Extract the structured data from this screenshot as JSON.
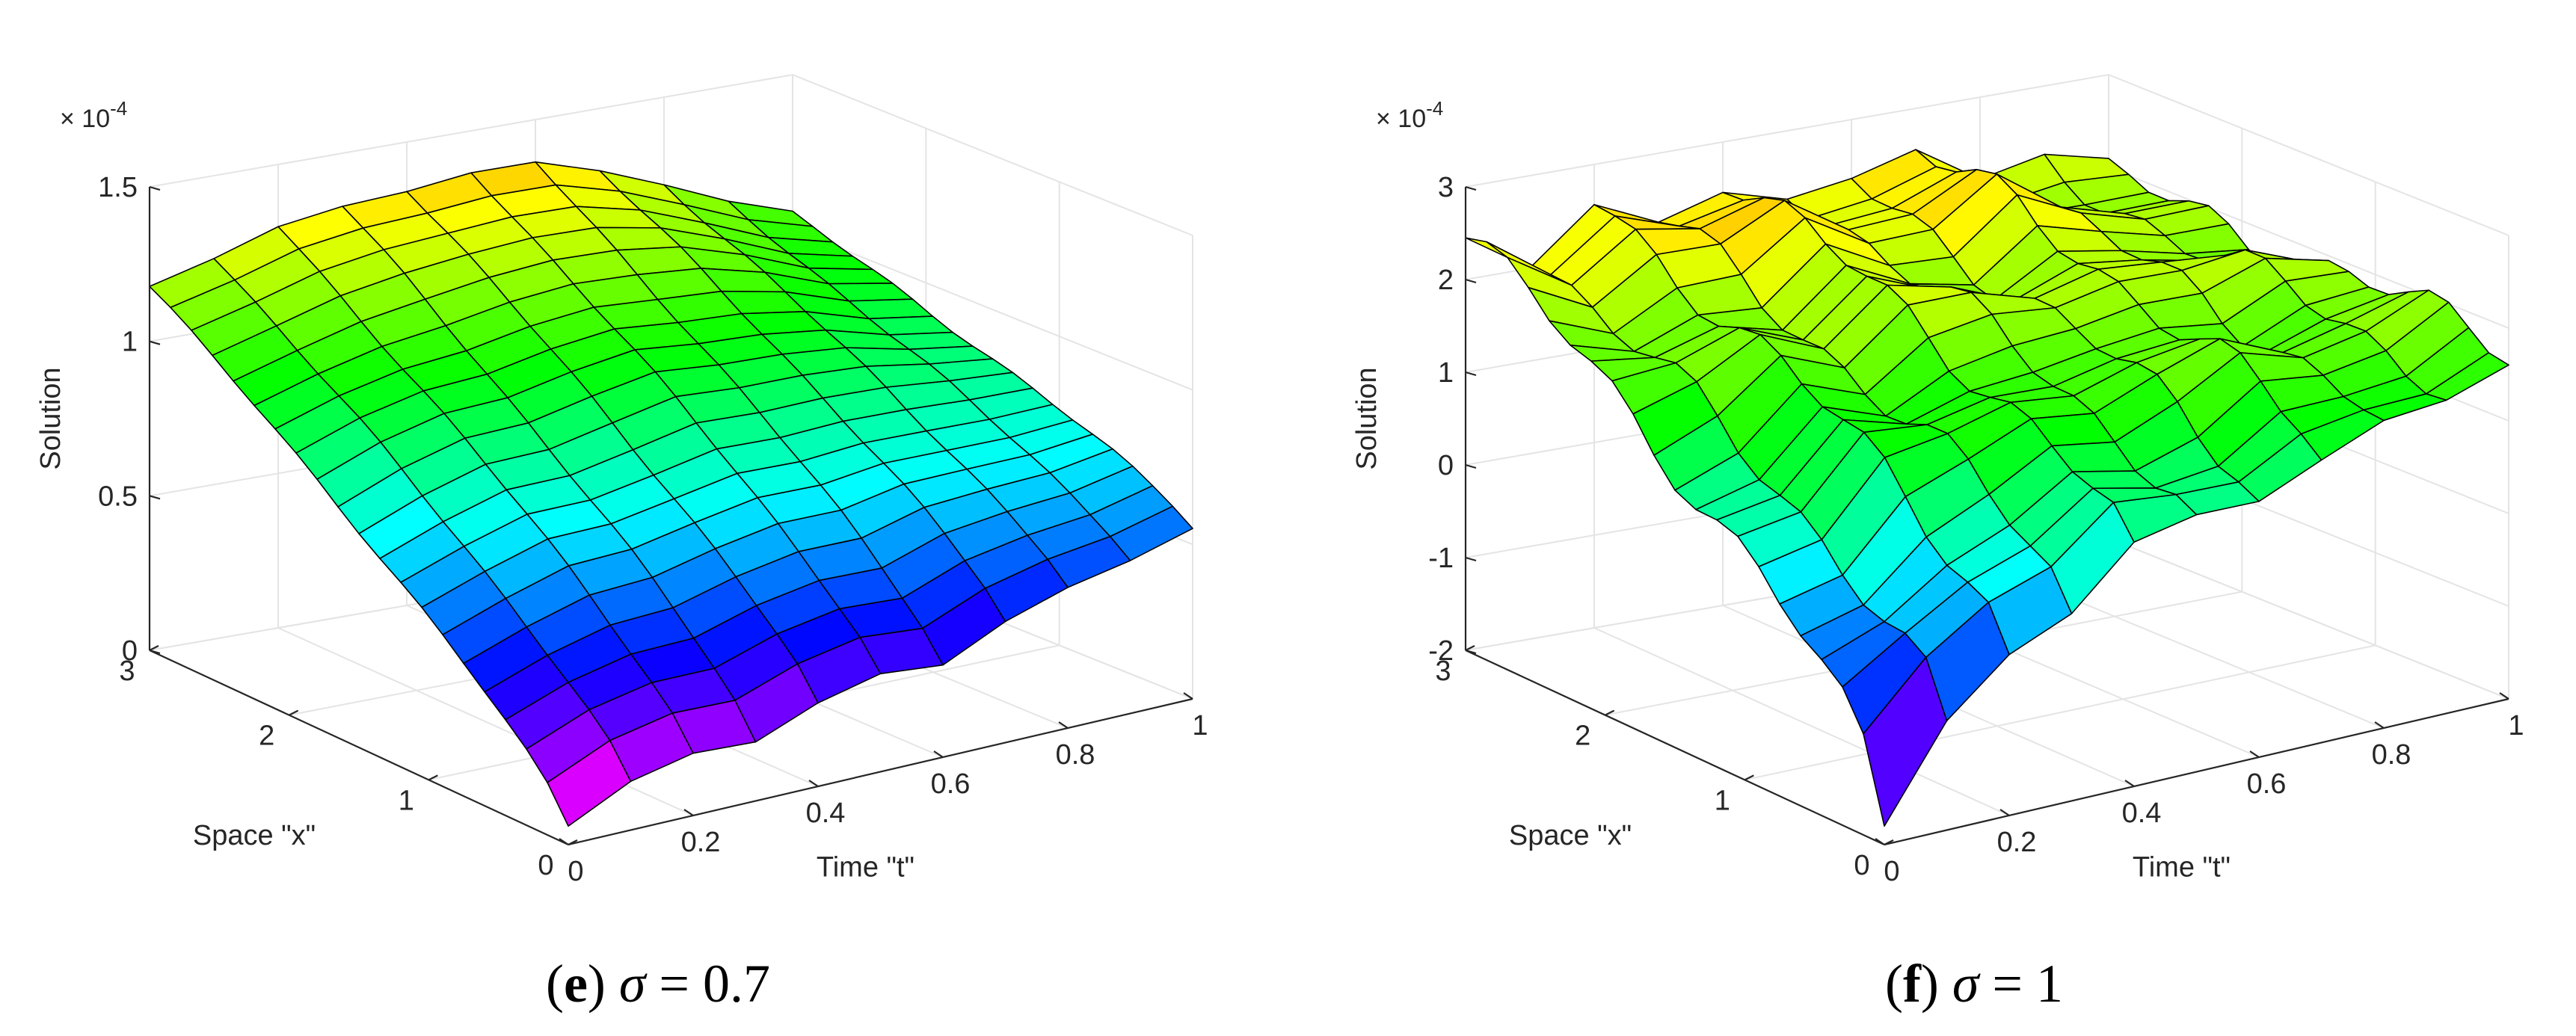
{
  "chart_data": [
    {
      "id": "e",
      "type": "surface",
      "caption": {
        "letter": "e",
        "symbol": "σ",
        "value": "0.7"
      },
      "zlabel": "Solution",
      "xlabel": "Space \"x\"",
      "ylabel": "Time \"t\"",
      "z_exponent": {
        "base": "× 10",
        "exp": "-4"
      },
      "x_ticks": [
        "0",
        "1",
        "2",
        "3"
      ],
      "t_ticks": [
        "0",
        "0.2",
        "0.4",
        "0.6",
        "0.8",
        "1"
      ],
      "z_ticks": [
        "0",
        "0.5",
        "1",
        "1.5"
      ],
      "z_tick_values": [
        0,
        0.5,
        1,
        1.5
      ],
      "xlim": [
        0,
        3
      ],
      "tlim": [
        0,
        1
      ],
      "zlim": [
        0,
        1.5
      ],
      "colormap": "hsv",
      "x_grid": [
        0,
        0.15,
        0.3,
        0.45,
        0.6,
        0.75,
        0.9,
        1.05,
        1.2,
        1.35,
        1.5,
        1.65,
        1.8,
        1.95,
        2.1,
        2.25,
        2.4,
        2.55,
        2.7,
        2.85,
        3
      ],
      "t_grid": [
        0,
        0.1,
        0.2,
        0.3,
        0.4,
        0.5,
        0.6,
        0.7,
        0.8,
        0.9,
        1
      ],
      "z_at_x0": [
        0.06,
        0.15,
        0.2,
        0.19,
        0.26,
        0.31,
        0.3,
        0.39,
        0.45,
        0.5,
        0.56
      ],
      "z_at_x3": [
        1.18,
        1.24,
        1.3,
        1.33,
        1.35,
        1.37,
        1.36,
        1.3,
        1.22,
        1.12,
        1.05
      ],
      "x_profile_exp": 0.8,
      "ripple_amp": 0.05
    },
    {
      "id": "f",
      "type": "surface",
      "caption": {
        "letter": "f",
        "symbol": "σ",
        "value": "1"
      },
      "zlabel": "Solution",
      "xlabel": "Space \"x\"",
      "ylabel": "Time \"t\"",
      "z_exponent": {
        "base": "× 10",
        "exp": "-4"
      },
      "x_ticks": [
        "0",
        "1",
        "2",
        "3"
      ],
      "t_ticks": [
        "0",
        "0.2",
        "0.4",
        "0.6",
        "0.8",
        "1"
      ],
      "z_ticks": [
        "-2",
        "-1",
        "0",
        "1",
        "2",
        "3"
      ],
      "z_tick_values": [
        -2,
        -1,
        0,
        1,
        2,
        3
      ],
      "xlim": [
        0,
        3
      ],
      "tlim": [
        0,
        1
      ],
      "zlim": [
        -2,
        3
      ],
      "colormap": "hsv",
      "x_grid": [
        0,
        0.15,
        0.3,
        0.45,
        0.6,
        0.75,
        0.9,
        1.05,
        1.2,
        1.35,
        1.5,
        1.65,
        1.8,
        1.95,
        2.1,
        2.25,
        2.4,
        2.55,
        2.7,
        2.85,
        3
      ],
      "t_grid": [
        0,
        0.1,
        0.2,
        0.3,
        0.4,
        0.5,
        0.6,
        0.7,
        0.8,
        0.9,
        1
      ],
      "z_at_x0": [
        -1.8,
        -1.0,
        -0.3,
        0.0,
        0.4,
        0.6,
        0.8,
        1.0,
        1.2,
        1.5,
        1.8
      ],
      "z_at_x3": [
        2.5,
        2.2,
        2.6,
        2.3,
        2.7,
        2.4,
        2.3,
        2.6,
        2.2,
        2.1,
        1.9
      ],
      "x_profile_exp": 0.6,
      "ripple_amp": 0.35
    }
  ]
}
